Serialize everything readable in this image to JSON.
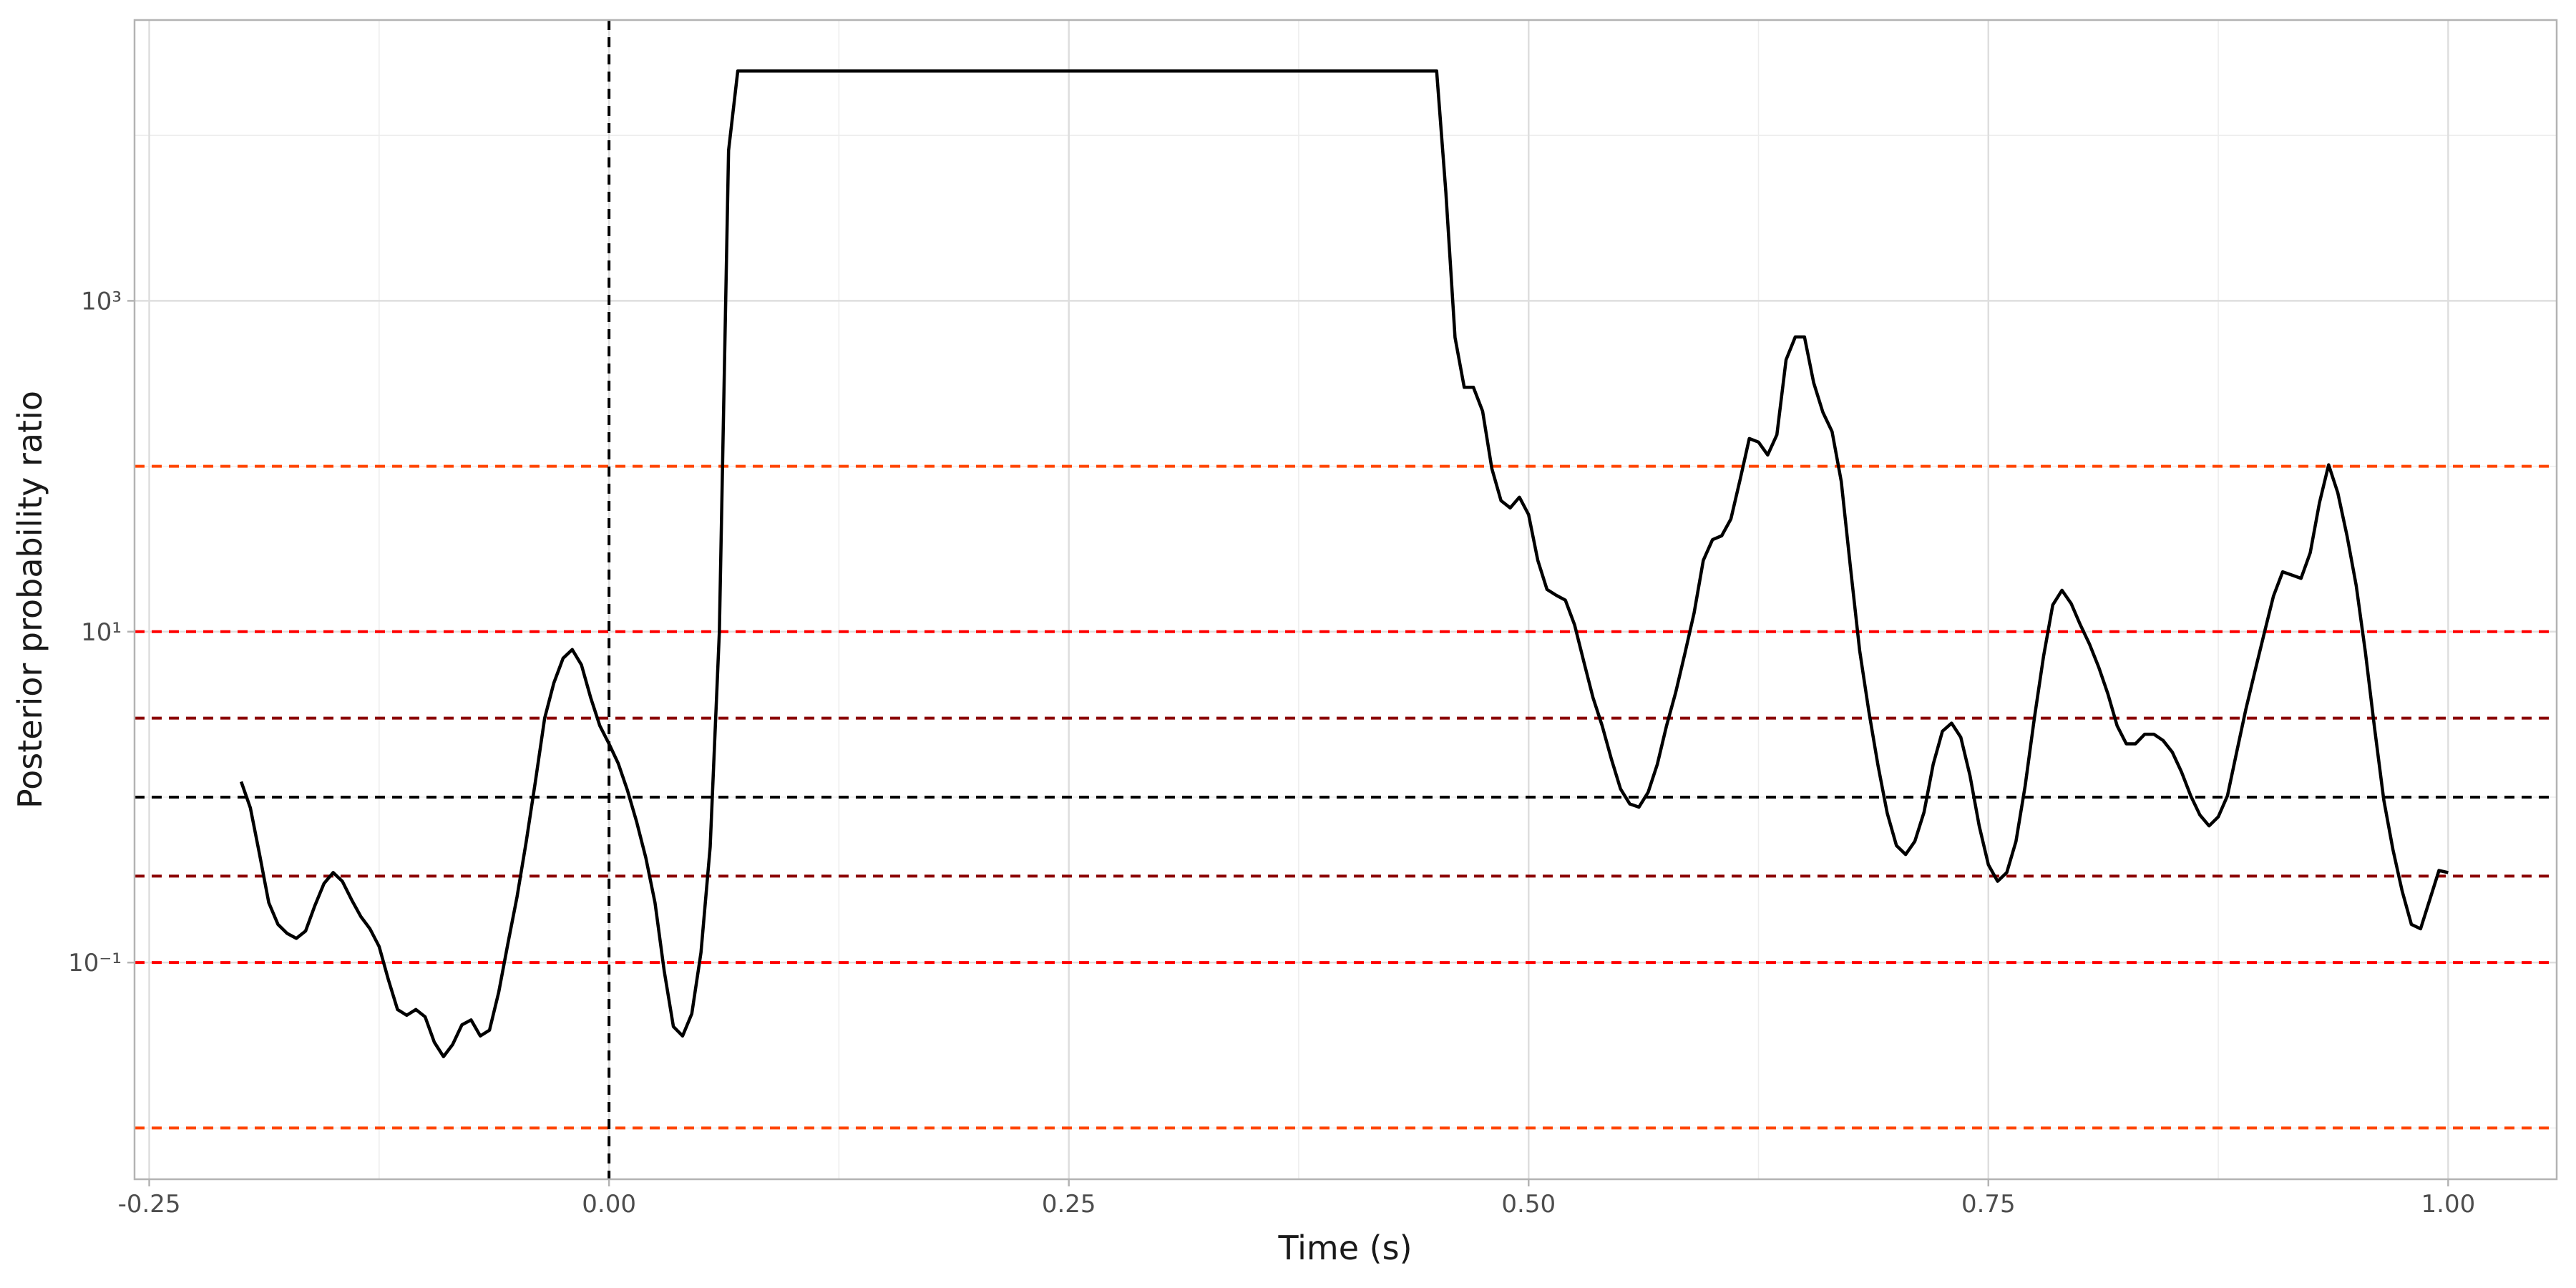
{
  "chart_data": {
    "type": "line",
    "xlabel": "Time (s)",
    "ylabel": "Posterior probability ratio",
    "x": [
      -0.2,
      -0.195,
      -0.19,
      -0.185,
      -0.18,
      -0.175,
      -0.17,
      -0.165,
      -0.16,
      -0.155,
      -0.15,
      -0.145,
      -0.14,
      -0.135,
      -0.13,
      -0.125,
      -0.12,
      -0.115,
      -0.11,
      -0.105,
      -0.1,
      -0.095,
      -0.09,
      -0.085,
      -0.08,
      -0.075,
      -0.07,
      -0.065,
      -0.06,
      -0.055,
      -0.05,
      -0.045,
      -0.04,
      -0.035,
      -0.03,
      -0.025,
      -0.02,
      -0.015,
      -0.01,
      -0.005,
      0,
      0.005,
      0.01,
      0.015,
      0.02,
      0.025,
      0.03,
      0.035,
      0.04,
      0.045,
      0.05,
      0.055,
      0.06,
      0.065,
      0.07,
      0.45,
      0.455,
      0.46,
      0.465,
      0.47,
      0.475,
      0.48,
      0.485,
      0.49,
      0.495,
      0.5,
      0.505,
      0.51,
      0.515,
      0.52,
      0.525,
      0.53,
      0.535,
      0.54,
      0.545,
      0.55,
      0.555,
      0.56,
      0.565,
      0.57,
      0.575,
      0.58,
      0.585,
      0.59,
      0.595,
      0.6,
      0.605,
      0.61,
      0.615,
      0.62,
      0.625,
      0.63,
      0.635,
      0.64,
      0.645,
      0.65,
      0.655,
      0.66,
      0.665,
      0.67,
      0.675,
      0.68,
      0.685,
      0.69,
      0.695,
      0.7,
      0.705,
      0.71,
      0.715,
      0.72,
      0.725,
      0.73,
      0.735,
      0.74,
      0.745,
      0.75,
      0.755,
      0.76,
      0.765,
      0.77,
      0.775,
      0.78,
      0.785,
      0.79,
      0.795,
      0.8,
      0.805,
      0.81,
      0.815,
      0.82,
      0.825,
      0.83,
      0.835,
      0.84,
      0.845,
      0.85,
      0.855,
      0.86,
      0.865,
      0.87,
      0.875,
      0.88,
      0.885,
      0.89,
      0.895,
      0.9,
      0.905,
      0.91,
      0.915,
      0.92,
      0.925,
      0.93,
      0.935,
      0.94,
      0.945,
      0.95,
      0.955,
      0.96,
      0.965,
      0.97,
      0.975,
      0.98,
      0.985,
      0.99,
      0.995,
      1.0
    ],
    "values": [
      1.24,
      0.86,
      0.45,
      0.23,
      0.17,
      0.15,
      0.14,
      0.155,
      0.22,
      0.3,
      0.35,
      0.31,
      0.24,
      0.19,
      0.16,
      0.125,
      0.079,
      0.052,
      0.048,
      0.052,
      0.047,
      0.033,
      0.027,
      0.032,
      0.042,
      0.045,
      0.036,
      0.039,
      0.066,
      0.13,
      0.25,
      0.54,
      1.25,
      3,
      4.9,
      6.9,
      7.8,
      6.3,
      4,
      2.7,
      2.1,
      1.6,
      1.1,
      0.71,
      0.43,
      0.23,
      0.089,
      0.041,
      0.036,
      0.049,
      0.115,
      0.5,
      10,
      8100,
      24500,
      24500,
      4550,
      600,
      300,
      300,
      215,
      97,
      62,
      56,
      65,
      51,
      27,
      18,
      16.6,
      15.5,
      11,
      6.6,
      4,
      2.7,
      1.7,
      1.12,
      0.91,
      0.87,
      1.07,
      1.58,
      2.7,
      4.3,
      7.4,
      13,
      27,
      36,
      38,
      48,
      83,
      147,
      140,
      117,
      155,
      440,
      605,
      605,
      320,
      212,
      162,
      81,
      24.5,
      7.7,
      3.3,
      1.55,
      0.8,
      0.51,
      0.45,
      0.54,
      0.81,
      1.58,
      2.5,
      2.8,
      2.3,
      1.35,
      0.67,
      0.39,
      0.31,
      0.35,
      0.54,
      1.17,
      3,
      7.1,
      14.5,
      17.8,
      14.8,
      11,
      8.4,
      6.1,
      4.2,
      2.7,
      2.1,
      2.1,
      2.4,
      2.4,
      2.2,
      1.87,
      1.42,
      1.02,
      0.78,
      0.67,
      0.76,
      1.02,
      1.87,
      3.4,
      5.8,
      9.8,
      16.4,
      23,
      22,
      21,
      30,
      60,
      102,
      69,
      38,
      19,
      7.5,
      2.6,
      0.96,
      0.48,
      0.27,
      0.17,
      0.16,
      0.24,
      0.36,
      0.35
    ],
    "color": "#000000",
    "xlim": [
      -0.258,
      1.059
    ],
    "ylim": [
      0.0049,
      49800
    ],
    "log_y": true,
    "grid": true,
    "xticks": [
      -0.25,
      {
        "value": 0,
        "label": "0.00"
      },
      {
        "value": 0.25,
        "label": "0.25"
      },
      {
        "value": 0.5,
        "label": "0.50"
      },
      {
        "value": 0.75,
        "label": "0.75"
      },
      {
        "value": 1,
        "label": "1.00"
      }
    ],
    "yticks": [
      {
        "value": 0.1,
        "label": "10⁻¹"
      },
      {
        "value": 10,
        "label": "10¹"
      },
      {
        "value": 1000,
        "label": "10³"
      }
    ],
    "x_minor_grid": [
      -0.125,
      0.125,
      0.375,
      0.625,
      0.875
    ],
    "y_minor_grid": [
      0.01,
      1,
      100,
      10000
    ],
    "hlines": [
      {
        "value": 100,
        "color": "#ff4500"
      },
      {
        "value": 10,
        "color": "#ff0000"
      },
      {
        "value": 3,
        "color": "#8b0000"
      },
      {
        "value": 1,
        "color": "#000000"
      },
      {
        "value": 0.333,
        "color": "#8b0000"
      },
      {
        "value": 0.1,
        "color": "#ff0000"
      },
      {
        "value": 0.01,
        "color": "#ff4500"
      }
    ],
    "vlines": [
      {
        "value": 0,
        "color": "#000000"
      }
    ]
  }
}
